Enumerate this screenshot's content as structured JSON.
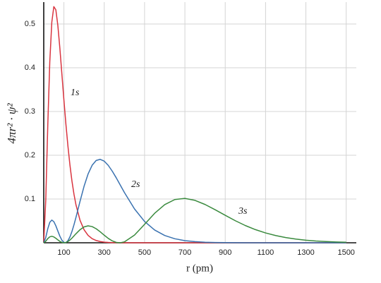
{
  "chart_data": {
    "type": "line",
    "y_label": "4πr² · ψ²",
    "x_label": "r (pm)",
    "x": [
      0,
      10,
      20,
      30,
      40,
      50,
      60,
      70,
      80,
      90,
      100,
      110,
      120,
      130,
      140,
      150,
      160,
      180,
      200,
      220,
      240,
      260,
      280,
      300,
      320,
      340,
      360,
      380,
      400,
      450,
      500,
      550,
      600,
      650,
      700,
      750,
      800,
      850,
      900,
      950,
      1000,
      1050,
      1100,
      1150,
      1200,
      1250,
      1300,
      1350,
      1400,
      1450,
      1500
    ],
    "series": [
      {
        "name": "1s",
        "color": "#d9343f",
        "values": [
          0,
          0.0978,
          0.2684,
          0.4137,
          0.5041,
          0.5397,
          0.5324,
          0.4963,
          0.4444,
          0.3853,
          0.3261,
          0.2704,
          0.2206,
          0.1773,
          0.1407,
          0.1107,
          0.0863,
          0.0513,
          0.0297,
          0.0169,
          0.0094,
          0.0052,
          0.0028,
          0.0015,
          0.0008,
          0.0004,
          0.0002,
          0.0001,
          0.0001,
          0,
          0,
          0,
          0,
          0,
          0,
          0,
          0,
          0,
          0,
          0,
          0,
          0,
          0,
          0,
          0,
          0,
          0,
          0,
          0,
          0,
          0
        ]
      },
      {
        "name": "2s",
        "color": "#3a72b0",
        "values": [
          0,
          0.0121,
          0.0322,
          0.0468,
          0.0519,
          0.0483,
          0.0388,
          0.0267,
          0.015,
          0.0059,
          0.0008,
          0.0004,
          0.0048,
          0.0135,
          0.026,
          0.0412,
          0.0583,
          0.0948,
          0.1292,
          0.1574,
          0.1772,
          0.1881,
          0.1907,
          0.1865,
          0.1768,
          0.1635,
          0.1481,
          0.1315,
          0.1149,
          0.0774,
          0.0487,
          0.0291,
          0.0166,
          0.0092,
          0.0049,
          0.0026,
          0.0013,
          0.0007,
          0.0003,
          0.0002,
          0.0001,
          0,
          0,
          0,
          0,
          0,
          0,
          0,
          0,
          0,
          0
        ]
      },
      {
        "name": "3s",
        "color": "#3a8a3e",
        "values": [
          0,
          0.0036,
          0.0095,
          0.0136,
          0.0148,
          0.0134,
          0.0103,
          0.0066,
          0.0032,
          0.0009,
          0,
          0.0007,
          0.0029,
          0.0063,
          0.0107,
          0.0157,
          0.0207,
          0.0299,
          0.0363,
          0.0387,
          0.037,
          0.0321,
          0.0251,
          0.0173,
          0.01,
          0.0043,
          0.0008,
          0.0001,
          0.0021,
          0.0175,
          0.0421,
          0.0674,
          0.0872,
          0.0988,
          0.1014,
          0.0969,
          0.0875,
          0.0755,
          0.0628,
          0.0504,
          0.0393,
          0.03,
          0.0225,
          0.0165,
          0.0119,
          0.0084,
          0.0059,
          0.0041,
          0.0028,
          0.0019,
          0.0013
        ]
      }
    ],
    "xlim": [
      0,
      1550
    ],
    "ylim": [
      0,
      0.55
    ],
    "xticks": [
      100,
      300,
      500,
      700,
      900,
      1100,
      1300,
      1500
    ],
    "yticks": [
      0.1,
      0.2,
      0.3,
      0.4,
      0.5
    ],
    "grid": true
  }
}
